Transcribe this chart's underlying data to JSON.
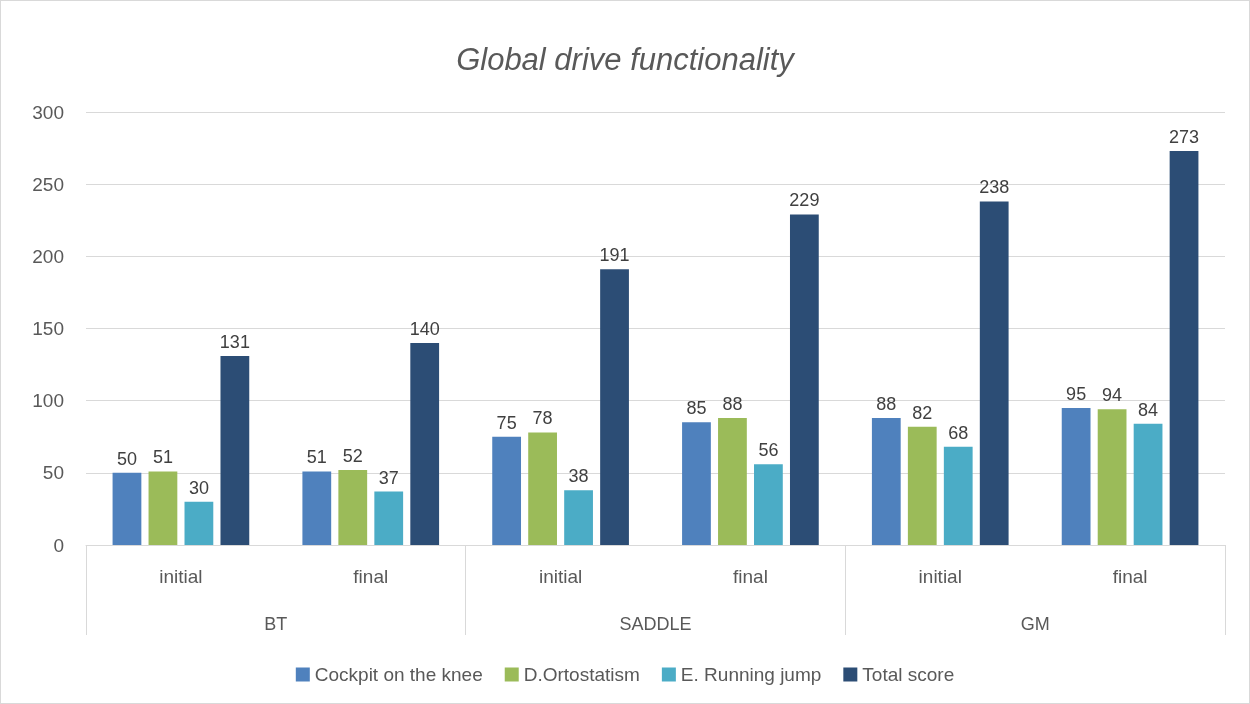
{
  "chart_data": {
    "type": "bar",
    "title": "Global drive functionality",
    "categories": [
      "initial",
      "final",
      "initial",
      "final",
      "initial",
      "final"
    ],
    "series": [
      {
        "name": "Cockpit on the knee",
        "color": "#4f81bd",
        "values": [
          50,
          51,
          75,
          85,
          88,
          95
        ]
      },
      {
        "name": "D.Ortostatism",
        "color": "#9bbb59",
        "values": [
          51,
          52,
          78,
          88,
          82,
          94
        ]
      },
      {
        "name": "E. Running jump",
        "color": "#4bacc6",
        "values": [
          30,
          37,
          38,
          56,
          68,
          84
        ]
      },
      {
        "name": "Total score",
        "color": "#2c4d75",
        "values": [
          131,
          140,
          191,
          229,
          238,
          273
        ]
      }
    ],
    "annotations": [
      "BT",
      "SADDLE",
      "GM"
    ],
    "ylim": [
      0,
      300
    ],
    "yticks": [
      0,
      50,
      100,
      150,
      200,
      250,
      300
    ],
    "grid": "y",
    "legend": "bottom",
    "data_labels": true
  }
}
